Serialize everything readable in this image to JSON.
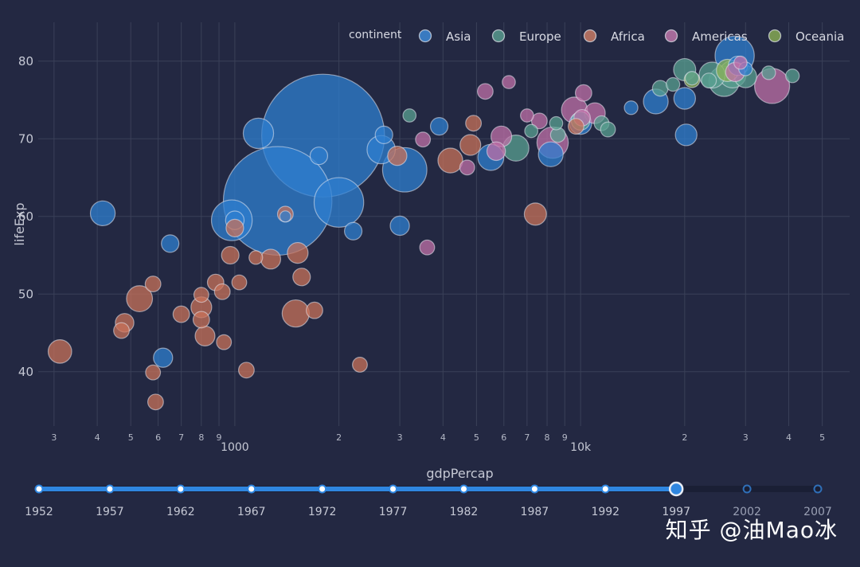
{
  "chart_data": {
    "type": "scatter",
    "xlabel": "gdpPercap",
    "ylabel": "lifeExp",
    "x_scale": "log",
    "xlim": [
      270,
      60000
    ],
    "ylim": [
      33,
      85
    ],
    "y_ticks": [
      40,
      50,
      60,
      70,
      80
    ],
    "x_major_ticks": [
      {
        "value": 1000,
        "label": "1000"
      },
      {
        "value": 10000,
        "label": "10k"
      }
    ],
    "x_minor_ticks": [
      {
        "value": 300,
        "label": "3"
      },
      {
        "value": 400,
        "label": "4"
      },
      {
        "value": 500,
        "label": "5"
      },
      {
        "value": 600,
        "label": "6"
      },
      {
        "value": 700,
        "label": "7"
      },
      {
        "value": 800,
        "label": "8"
      },
      {
        "value": 900,
        "label": "9"
      },
      {
        "value": 2000,
        "label": "2"
      },
      {
        "value": 3000,
        "label": "3"
      },
      {
        "value": 4000,
        "label": "4"
      },
      {
        "value": 5000,
        "label": "5"
      },
      {
        "value": 6000,
        "label": "6"
      },
      {
        "value": 7000,
        "label": "7"
      },
      {
        "value": 8000,
        "label": "8"
      },
      {
        "value": 9000,
        "label": "9"
      },
      {
        "value": 20000,
        "label": "2"
      },
      {
        "value": 30000,
        "label": "3"
      },
      {
        "value": 40000,
        "label": "4"
      },
      {
        "value": 50000,
        "label": "5"
      }
    ],
    "grid": true,
    "legend": {
      "title": "continent",
      "placement": "top-right",
      "entries": [
        {
          "name": "Asia",
          "color": "#3f8fe0"
        },
        {
          "name": "Europe",
          "color": "#5aa092"
        },
        {
          "name": "Africa",
          "color": "#d07e66"
        },
        {
          "name": "Americas",
          "color": "#c57ab0"
        },
        {
          "name": "Oceania",
          "color": "#8bb055"
        }
      ]
    },
    "series": [
      {
        "name": "Asia",
        "color": "#2f7fd0",
        "points": [
          {
            "x": 1800,
            "y": 70.4,
            "size": 1230
          },
          {
            "x": 1330,
            "y": 62.0,
            "size": 960
          },
          {
            "x": 2000,
            "y": 61.8,
            "size": 200
          },
          {
            "x": 3100,
            "y": 66.0,
            "size": 160
          },
          {
            "x": 980,
            "y": 59.5,
            "size": 135
          },
          {
            "x": 1170,
            "y": 70.7,
            "size": 75
          },
          {
            "x": 415,
            "y": 60.4,
            "size": 50
          },
          {
            "x": 2650,
            "y": 68.6,
            "size": 65
          },
          {
            "x": 5500,
            "y": 67.6,
            "size": 55
          },
          {
            "x": 8200,
            "y": 68.0,
            "size": 50
          },
          {
            "x": 16500,
            "y": 74.8,
            "size": 50
          },
          {
            "x": 20000,
            "y": 75.2,
            "size": 38
          },
          {
            "x": 20200,
            "y": 70.5,
            "size": 38
          },
          {
            "x": 27900,
            "y": 80.7,
            "size": 125
          },
          {
            "x": 28500,
            "y": 79.4,
            "size": 30
          },
          {
            "x": 10000,
            "y": 72.0,
            "size": 40
          },
          {
            "x": 620,
            "y": 41.8,
            "size": 30
          },
          {
            "x": 650,
            "y": 56.5,
            "size": 25
          },
          {
            "x": 3000,
            "y": 58.8,
            "size": 30
          },
          {
            "x": 1750,
            "y": 67.8,
            "size": 25
          },
          {
            "x": 3900,
            "y": 71.6,
            "size": 25
          },
          {
            "x": 2200,
            "y": 58.1,
            "size": 25
          },
          {
            "x": 2700,
            "y": 70.5,
            "size": 25
          },
          {
            "x": 1000,
            "y": 59.5,
            "size": 28
          },
          {
            "x": 1400,
            "y": 60.0,
            "size": 10
          },
          {
            "x": 14000,
            "y": 74.0,
            "size": 15
          },
          {
            "x": 30000,
            "y": 79.0,
            "size": 15
          }
        ]
      },
      {
        "name": "Europe",
        "color": "#5aa092",
        "points": [
          {
            "x": 26000,
            "y": 77.4,
            "size": 75
          },
          {
            "x": 24000,
            "y": 78.2,
            "size": 55
          },
          {
            "x": 20000,
            "y": 78.9,
            "size": 40
          },
          {
            "x": 27500,
            "y": 78.3,
            "size": 60
          },
          {
            "x": 30000,
            "y": 78.0,
            "size": 40
          },
          {
            "x": 6500,
            "y": 68.8,
            "size": 55
          },
          {
            "x": 10000,
            "y": 72.3,
            "size": 28
          },
          {
            "x": 11500,
            "y": 72.0,
            "size": 18
          },
          {
            "x": 17000,
            "y": 76.5,
            "size": 20
          },
          {
            "x": 18500,
            "y": 77.0,
            "size": 15
          },
          {
            "x": 21000,
            "y": 77.8,
            "size": 15
          },
          {
            "x": 23500,
            "y": 77.5,
            "size": 18
          },
          {
            "x": 35000,
            "y": 78.5,
            "size": 15
          },
          {
            "x": 41000,
            "y": 78.1,
            "size": 15
          },
          {
            "x": 8600,
            "y": 70.5,
            "size": 18
          },
          {
            "x": 8500,
            "y": 72.0,
            "size": 14
          },
          {
            "x": 7200,
            "y": 71.0,
            "size": 14
          },
          {
            "x": 12000,
            "y": 71.2,
            "size": 18
          },
          {
            "x": 3200,
            "y": 73.0,
            "size": 14
          }
        ]
      },
      {
        "name": "Africa",
        "color": "#c8725a",
        "points": [
          {
            "x": 312,
            "y": 42.6,
            "size": 45
          },
          {
            "x": 530,
            "y": 49.4,
            "size": 55
          },
          {
            "x": 480,
            "y": 46.3,
            "size": 28
          },
          {
            "x": 470,
            "y": 45.3,
            "size": 20
          },
          {
            "x": 580,
            "y": 51.3,
            "size": 20
          },
          {
            "x": 580,
            "y": 39.9,
            "size": 18
          },
          {
            "x": 590,
            "y": 36.1,
            "size": 20
          },
          {
            "x": 700,
            "y": 47.4,
            "size": 22
          },
          {
            "x": 800,
            "y": 48.3,
            "size": 35
          },
          {
            "x": 820,
            "y": 44.6,
            "size": 32
          },
          {
            "x": 800,
            "y": 46.7,
            "size": 22
          },
          {
            "x": 880,
            "y": 51.5,
            "size": 22
          },
          {
            "x": 920,
            "y": 50.3,
            "size": 20
          },
          {
            "x": 970,
            "y": 55.0,
            "size": 25
          },
          {
            "x": 930,
            "y": 43.8,
            "size": 18
          },
          {
            "x": 1030,
            "y": 51.5,
            "size": 18
          },
          {
            "x": 1080,
            "y": 40.2,
            "size": 20
          },
          {
            "x": 1270,
            "y": 54.5,
            "size": 32
          },
          {
            "x": 1520,
            "y": 55.3,
            "size": 35
          },
          {
            "x": 1560,
            "y": 52.2,
            "size": 25
          },
          {
            "x": 1500,
            "y": 47.5,
            "size": 60
          },
          {
            "x": 1700,
            "y": 47.9,
            "size": 22
          },
          {
            "x": 2300,
            "y": 40.9,
            "size": 18
          },
          {
            "x": 4200,
            "y": 67.2,
            "size": 50
          },
          {
            "x": 4800,
            "y": 69.2,
            "size": 35
          },
          {
            "x": 4900,
            "y": 72.0,
            "size": 20
          },
          {
            "x": 7400,
            "y": 60.3,
            "size": 40
          },
          {
            "x": 9700,
            "y": 71.6,
            "size": 20
          },
          {
            "x": 1000,
            "y": 58.5,
            "size": 25
          },
          {
            "x": 2950,
            "y": 67.8,
            "size": 30
          },
          {
            "x": 1150,
            "y": 54.7,
            "size": 15
          },
          {
            "x": 800,
            "y": 49.9,
            "size": 18
          },
          {
            "x": 1400,
            "y": 60.3,
            "size": 20
          }
        ]
      },
      {
        "name": "Americas",
        "color": "#c070a8",
        "points": [
          {
            "x": 35800,
            "y": 76.8,
            "size": 100
          },
          {
            "x": 8300,
            "y": 69.5,
            "size": 80
          },
          {
            "x": 9600,
            "y": 73.7,
            "size": 55
          },
          {
            "x": 5900,
            "y": 70.3,
            "size": 35
          },
          {
            "x": 11000,
            "y": 73.3,
            "size": 35
          },
          {
            "x": 7600,
            "y": 72.3,
            "size": 20
          },
          {
            "x": 4700,
            "y": 66.3,
            "size": 18
          },
          {
            "x": 5700,
            "y": 68.4,
            "size": 28
          },
          {
            "x": 10200,
            "y": 75.9,
            "size": 22
          },
          {
            "x": 10100,
            "y": 72.7,
            "size": 22
          },
          {
            "x": 3500,
            "y": 69.9,
            "size": 18
          },
          {
            "x": 5300,
            "y": 76.1,
            "size": 20
          },
          {
            "x": 3600,
            "y": 56.0,
            "size": 18
          },
          {
            "x": 6200,
            "y": 77.3,
            "size": 14
          },
          {
            "x": 7000,
            "y": 73.0,
            "size": 14
          },
          {
            "x": 28000,
            "y": 78.6,
            "size": 30
          },
          {
            "x": 29000,
            "y": 79.8,
            "size": 14
          }
        ]
      },
      {
        "name": "Oceania",
        "color": "#8bb055",
        "points": [
          {
            "x": 26600,
            "y": 78.8,
            "size": 40
          },
          {
            "x": 21000,
            "y": 77.6,
            "size": 20
          }
        ]
      }
    ]
  },
  "slider": {
    "years": [
      "1952",
      "1957",
      "1962",
      "1967",
      "1972",
      "1977",
      "1982",
      "1987",
      "1992",
      "1997",
      "2002",
      "2007"
    ],
    "current": "1997",
    "current_index": 9
  },
  "watermark": "知乎 @油Mao冰"
}
